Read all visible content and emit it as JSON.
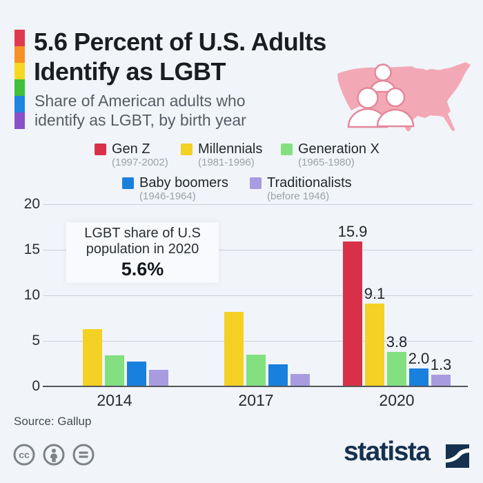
{
  "header": {
    "title_line1": "5.6 Percent of U.S. Adults",
    "title_line2": "Identify as LGBT",
    "subtitle_line1": "Share of American adults who",
    "subtitle_line2": "identify as LGBT, by birth year",
    "pride_colors": [
      "#e0394e",
      "#f59126",
      "#f7d823",
      "#3fc13c",
      "#1f86e0",
      "#8a52c9"
    ],
    "map_color": "#f2a9b5"
  },
  "legend": {
    "items": [
      {
        "label": "Gen Z",
        "dates": "(1997-2002)",
        "color": "#d9304a"
      },
      {
        "label": "Millennials",
        "dates": "(1981-1996)",
        "color": "#f4d125"
      },
      {
        "label": "Generation X",
        "dates": "(1965-1980)",
        "color": "#82e080"
      },
      {
        "label": "Baby boomers",
        "dates": "(1946-1964)",
        "color": "#1a80dd"
      },
      {
        "label": "Traditionalists",
        "dates": "(before 1946)",
        "color": "#a99be0"
      }
    ]
  },
  "chart_data": {
    "type": "bar",
    "categories": [
      "2014",
      "2017",
      "2020"
    ],
    "series": [
      {
        "name": "Gen Z",
        "color": "#d9304a",
        "values": [
          null,
          null,
          15.9
        ]
      },
      {
        "name": "Millennials",
        "color": "#f4d125",
        "values": [
          6.3,
          8.2,
          9.1
        ]
      },
      {
        "name": "Generation X",
        "color": "#82e080",
        "values": [
          3.4,
          3.5,
          3.8
        ]
      },
      {
        "name": "Baby boomers",
        "color": "#1a80dd",
        "values": [
          2.7,
          2.4,
          2.0
        ]
      },
      {
        "name": "Traditionalists",
        "color": "#a99be0",
        "values": [
          1.8,
          1.4,
          1.3
        ]
      }
    ],
    "ylim": [
      0,
      20
    ],
    "yticks": [
      0,
      5,
      10,
      15,
      20
    ],
    "grid": "horizontal",
    "legend_position": "top",
    "value_labels_category_index": 2,
    "annotation": {
      "line1": "LGBT share of U.S",
      "line2": "population in 2020",
      "value": "5.6%"
    }
  },
  "footer": {
    "source": "Source: Gallup",
    "license_icons": [
      "cc",
      "attribution",
      "no-derivatives"
    ],
    "brand": {
      "name": "statista",
      "color": "#15314f"
    }
  }
}
